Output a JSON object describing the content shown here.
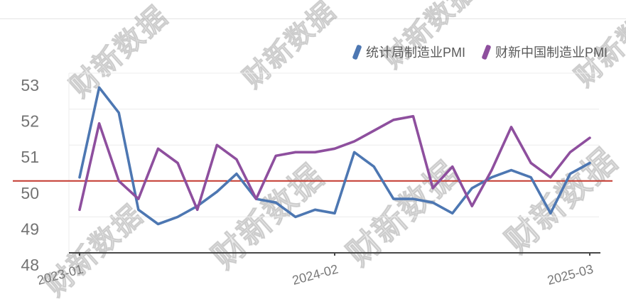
{
  "page": {
    "background": "#ffffff"
  },
  "watermark": {
    "text": "财新数据"
  },
  "legend": {
    "items": [
      {
        "label": "统计局制造业PMI",
        "color": "#4d77b2"
      },
      {
        "label": "财新中国制造业PMI",
        "color": "#8e4f9e"
      }
    ]
  },
  "chart_data": {
    "type": "line",
    "x": [
      "2023-01",
      "2023-02",
      "2023-03",
      "2023-04",
      "2023-05",
      "2023-06",
      "2023-07",
      "2023-08",
      "2023-09",
      "2023-10",
      "2023-11",
      "2023-12",
      "2024-01",
      "2024-02",
      "2024-03",
      "2024-04",
      "2024-05",
      "2024-06",
      "2024-07",
      "2024-08",
      "2024-09",
      "2024-10",
      "2024-11",
      "2024-12",
      "2025-01",
      "2025-02",
      "2025-03"
    ],
    "series": [
      {
        "name": "统计局制造业PMI",
        "color": "#4d77b2",
        "values": [
          50.1,
          52.6,
          51.9,
          49.2,
          48.8,
          49.0,
          49.3,
          49.7,
          50.2,
          49.5,
          49.4,
          49.0,
          49.2,
          49.1,
          50.8,
          50.4,
          49.5,
          49.5,
          49.4,
          49.1,
          49.8,
          50.1,
          50.3,
          50.1,
          49.1,
          50.2,
          50.5
        ]
      },
      {
        "name": "财新中国制造业PMI",
        "color": "#8e4f9e",
        "values": [
          49.2,
          51.6,
          50.0,
          49.5,
          50.9,
          50.5,
          49.2,
          51.0,
          50.6,
          49.5,
          50.7,
          50.8,
          50.8,
          50.9,
          51.1,
          51.4,
          51.7,
          51.8,
          49.8,
          50.4,
          49.3,
          50.3,
          51.5,
          50.5,
          50.1,
          50.8,
          51.2
        ]
      }
    ],
    "title": "",
    "xlabel": "",
    "ylabel": "",
    "ylim": [
      48,
      53.6
    ],
    "yticks": [
      48,
      49,
      50,
      51,
      52,
      53
    ],
    "xticks_shown": [
      "2023-01",
      "2024-02",
      "2025-03"
    ],
    "reference_line": {
      "value": 50,
      "color": "#c3392f"
    },
    "grid": true,
    "legend_position": "top-right",
    "colors": {
      "grid_line": "#ececec",
      "axis_line": "#474747",
      "tick_label": "#737373"
    }
  }
}
